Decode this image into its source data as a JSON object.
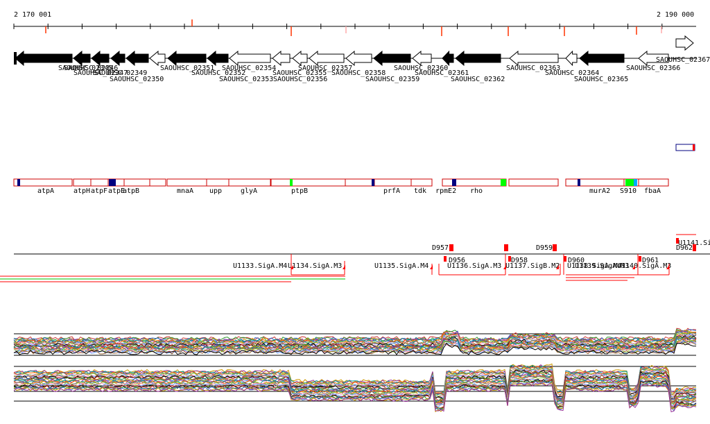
{
  "ruler": {
    "start_label": "2 170 001",
    "end_label": "2 190 000"
  },
  "genes": [
    {
      "label": "SAOUHSC_02345",
      "strand": "-",
      "fill": "black"
    },
    {
      "label": "SAOUHSC_02346",
      "strand": "-",
      "fill": "black"
    },
    {
      "label": "SAOUHSC_02347",
      "strand": "-",
      "fill": "black"
    },
    {
      "label": "SAOUHSC_02349",
      "strand": "-",
      "fill": "black"
    },
    {
      "label": "SAOUHSC_02350",
      "strand": "-",
      "fill": "black"
    },
    {
      "label": "SAOUHSC_02351",
      "strand": "-",
      "fill": "white"
    },
    {
      "label": "SAOUHSC_02352",
      "strand": "-",
      "fill": "black"
    },
    {
      "label": "SAOUHSC_02353",
      "strand": "-",
      "fill": "black"
    },
    {
      "label": "SAOUHSC_02354",
      "strand": "-",
      "fill": "white"
    },
    {
      "label": "SAOUHSC_02355",
      "strand": "-",
      "fill": "white"
    },
    {
      "label": "SAOUHSC_02356",
      "strand": "-",
      "fill": "white"
    },
    {
      "label": "SAOUHSC_02357",
      "strand": "-",
      "fill": "white"
    },
    {
      "label": "SAOUHSC_02358",
      "strand": "-",
      "fill": "white"
    },
    {
      "label": "SAOUHSC_02359",
      "strand": "-",
      "fill": "black"
    },
    {
      "label": "SAOUHSC_02360",
      "strand": "-",
      "fill": "white"
    },
    {
      "label": "SAOUHSC_02361",
      "strand": "-",
      "fill": "black"
    },
    {
      "label": "SAOUHSC_02362",
      "strand": "-",
      "fill": "black"
    },
    {
      "label": "SAOUHSC_02363",
      "strand": "-",
      "fill": "white"
    },
    {
      "label": "SAOUHSC_02364",
      "strand": "-",
      "fill": "white"
    },
    {
      "label": "SAOUHSC_02365",
      "strand": "-",
      "fill": "black"
    },
    {
      "label": "SAOUHSC_02366",
      "strand": "-",
      "fill": "white"
    },
    {
      "label": "SAOUHSC_02367",
      "strand": "+",
      "fill": "white"
    }
  ],
  "operon_labels": [
    "atpA",
    "atpH",
    "atpF",
    "atpE",
    "atpB",
    "mnaA",
    "upp",
    "glyA",
    "ptpB",
    "prfA",
    "tdk",
    "rpmE2",
    "rho",
    "murA2",
    "S910",
    "fbaA"
  ],
  "feature_labels": [
    "U1133.SigA.M4",
    "U1134.SigA.M3",
    "U1135.SigA.M4",
    "U1136.SigA.M3",
    "U1137.SigB.M2",
    "U1138.SigA.M4",
    "U1139.SigA.M3",
    "U1140.SigA.M3",
    "U1141.Si",
    "D956",
    "D957",
    "D958",
    "D959",
    "D960",
    "D961",
    "D962"
  ],
  "colors": {
    "feature": "#ff0000",
    "operon_border": "#cc0000",
    "marker_blue": "#00007f",
    "marker_green": "#00ff00",
    "gene": "#000000"
  }
}
